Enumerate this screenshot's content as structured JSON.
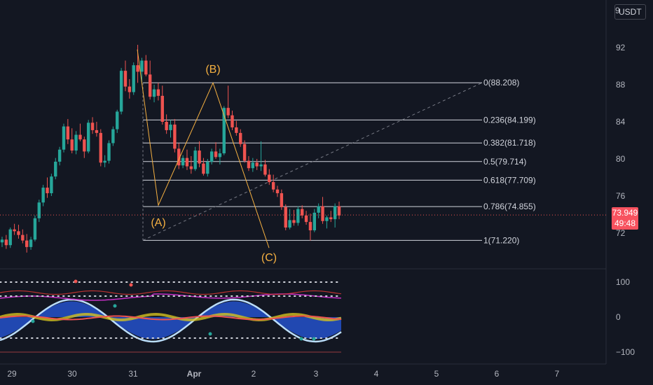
{
  "currency": "USDT",
  "currency_prefix": "9",
  "last_price": "73.949",
  "countdown": "49:48",
  "colors": {
    "up": "#26a69a",
    "down": "#ef5350",
    "fib_line": "#d1d4dc",
    "wave": "#f5b041",
    "bg": "#131722",
    "grid": "#1e222d"
  },
  "chart_data": {
    "type": "candlestick",
    "title": "",
    "price_axis": {
      "ticks": [
        "92",
        "88",
        "84",
        "80",
        "76",
        "72"
      ],
      "range": [
        69.5,
        94.5
      ]
    },
    "time_axis": {
      "ticks": [
        "29",
        "30",
        "31",
        "Apr",
        "2",
        "3",
        "4",
        "5",
        "6",
        "7"
      ]
    },
    "candles": [
      [
        71,
        71.6,
        70.5,
        71.3
      ],
      [
        71.3,
        71.8,
        70.3,
        70.7
      ],
      [
        70.7,
        72.6,
        70.4,
        72.4
      ],
      [
        72.4,
        73,
        71.8,
        72.2
      ],
      [
        72.2,
        72.9,
        71.4,
        71.8
      ],
      [
        71.8,
        72.4,
        70.9,
        71.2
      ],
      [
        71.2,
        71.9,
        69.9,
        70.5
      ],
      [
        70.5,
        71.6,
        70.2,
        71.3
      ],
      [
        71.3,
        73.9,
        71.1,
        73.6
      ],
      [
        73.6,
        75.6,
        73.2,
        75.3
      ],
      [
        75.3,
        77.2,
        74.9,
        76.9
      ],
      [
        76.9,
        78,
        75.8,
        76.3
      ],
      [
        76.3,
        78.4,
        76,
        78.1
      ],
      [
        78.1,
        80.1,
        77.8,
        79.7
      ],
      [
        79.7,
        81.3,
        79.3,
        81
      ],
      [
        81,
        83.8,
        80.7,
        83.5
      ],
      [
        83.5,
        84.3,
        81.6,
        82.1
      ],
      [
        82.1,
        83.3,
        80.6,
        80.9
      ],
      [
        80.9,
        83,
        80.5,
        82.6
      ],
      [
        82.6,
        83.8,
        81.9,
        82.1
      ],
      [
        82.1,
        82.4,
        80.1,
        80.8
      ],
      [
        80.8,
        84.2,
        80.6,
        83.9
      ],
      [
        83.9,
        84.5,
        82.7,
        83.1
      ],
      [
        83.1,
        84,
        82.4,
        82.8
      ],
      [
        82.8,
        83.2,
        79.2,
        79.6
      ],
      [
        79.6,
        80.4,
        79.1,
        79.8
      ],
      [
        79.8,
        82,
        79.5,
        81.7
      ],
      [
        81.7,
        83.5,
        81.4,
        83.2
      ],
      [
        83.2,
        85.3,
        82.8,
        85.1
      ],
      [
        85.1,
        89.8,
        84.8,
        89.5
      ],
      [
        89.5,
        90.6,
        87.3,
        87.8
      ],
      [
        87.8,
        88.6,
        86.5,
        87.2
      ],
      [
        87.2,
        90.4,
        86.9,
        90.1
      ],
      [
        90.1,
        92.3,
        88.2,
        89.4
      ],
      [
        89.4,
        90.9,
        88.1,
        90.6
      ],
      [
        90.6,
        91.2,
        88.9,
        89.1
      ],
      [
        89.1,
        90.6,
        86.4,
        86.7
      ],
      [
        86.7,
        88,
        86.1,
        87.5
      ],
      [
        87.5,
        88.2,
        86.3,
        86.8
      ],
      [
        86.8,
        87.9,
        83.7,
        84
      ],
      [
        84,
        84.8,
        82.7,
        83.1
      ],
      [
        83.1,
        84.2,
        82.3,
        83.7
      ],
      [
        83.7,
        84.3,
        80.7,
        81.1
      ],
      [
        81.1,
        81.7,
        78.9,
        79.3
      ],
      [
        79.3,
        80.4,
        79,
        80.1
      ],
      [
        80.1,
        81,
        78.8,
        79.2
      ],
      [
        79.2,
        80.3,
        78.4,
        78.9
      ],
      [
        78.9,
        81.3,
        78.7,
        80.9
      ],
      [
        80.9,
        81.9,
        79.1,
        79.5
      ],
      [
        79.5,
        80.1,
        78.2,
        78.4
      ],
      [
        78.4,
        80,
        78.1,
        79.7
      ],
      [
        79.7,
        81.1,
        79.4,
        80.8
      ],
      [
        80.8,
        81.8,
        80,
        80.2
      ],
      [
        80.2,
        81.1,
        79.4,
        80.6
      ],
      [
        80.6,
        85.7,
        80.4,
        85.5
      ],
      [
        85.5,
        87.9,
        84.4,
        84.7
      ],
      [
        84.7,
        85.2,
        83.1,
        83.4
      ],
      [
        83.4,
        84.1,
        82.5,
        82.8
      ],
      [
        82.8,
        83.2,
        81.3,
        81.6
      ],
      [
        81.6,
        82,
        79.6,
        79.8
      ],
      [
        79.8,
        80.3,
        78.7,
        79
      ],
      [
        79,
        80.1,
        78.6,
        79.6
      ],
      [
        79.6,
        80,
        78.8,
        79.2
      ],
      [
        79.2,
        81.9,
        78.7,
        79.4
      ],
      [
        79.4,
        79.9,
        78.1,
        78.3
      ],
      [
        78.3,
        78.9,
        77.2,
        77.5
      ],
      [
        77.5,
        78.3,
        76.4,
        76.7
      ],
      [
        76.7,
        77.1,
        75.9,
        76.3
      ],
      [
        76.3,
        76.7,
        74.5,
        74.8
      ],
      [
        74.8,
        75.1,
        72.3,
        72.6
      ],
      [
        72.6,
        74.6,
        72.4,
        73.4
      ],
      [
        73.4,
        74.5,
        72.8,
        73.1
      ],
      [
        73.1,
        74.9,
        72.8,
        74.6
      ],
      [
        74.6,
        75,
        73.6,
        73.9
      ],
      [
        73.9,
        74.4,
        72.9,
        73.2
      ],
      [
        73.2,
        74.1,
        71.2,
        72.3
      ],
      [
        72.3,
        74.6,
        72.1,
        74.2
      ],
      [
        74.2,
        75.2,
        73.6,
        74.9
      ],
      [
        74.9,
        75.9,
        73,
        73.3
      ],
      [
        73.3,
        73.9,
        72.5,
        73.7
      ],
      [
        73.7,
        74.4,
        73.2,
        73.5
      ],
      [
        73.5,
        75.2,
        72.6,
        74.9
      ],
      [
        74.9,
        75.4,
        73.5,
        73.9
      ]
    ],
    "fibonacci": [
      {
        "label": "0(88.208)",
        "level": 88.208
      },
      {
        "label": "0.236(84.199)",
        "level": 84.199
      },
      {
        "label": "0.382(81.718)",
        "level": 81.718
      },
      {
        "label": "0.5(79.714)",
        "level": 79.714
      },
      {
        "label": "0.618(77.709)",
        "level": 77.709
      },
      {
        "label": "0.786(74.855)",
        "level": 74.855
      },
      {
        "label": "1(71.220)",
        "level": 71.22
      }
    ],
    "waves": [
      {
        "label": "(A)",
        "price": 75.0
      },
      {
        "label": "(B)",
        "price": 88.2
      },
      {
        "label": "(C)",
        "price": 70.4
      }
    ],
    "oscillator": {
      "ticks": [
        "100",
        "0",
        "−100"
      ],
      "range": [
        -115,
        115
      ]
    }
  }
}
